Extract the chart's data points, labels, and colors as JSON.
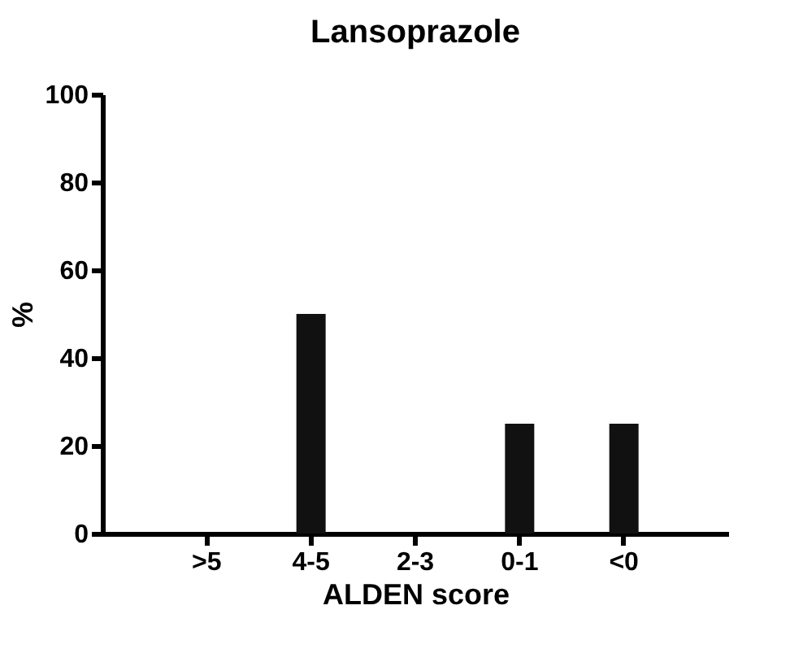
{
  "chart_data": {
    "type": "bar",
    "title": "Lansoprazole",
    "xlabel": "ALDEN score",
    "ylabel": "%",
    "categories": [
      ">5",
      "4-5",
      "2-3",
      "0-1",
      "<0"
    ],
    "values": [
      0,
      50,
      0,
      25,
      25
    ],
    "color": "#111111",
    "ylim": [
      0,
      100
    ],
    "yticks": [
      0,
      20,
      40,
      60,
      80,
      100
    ],
    "grid": false
  }
}
